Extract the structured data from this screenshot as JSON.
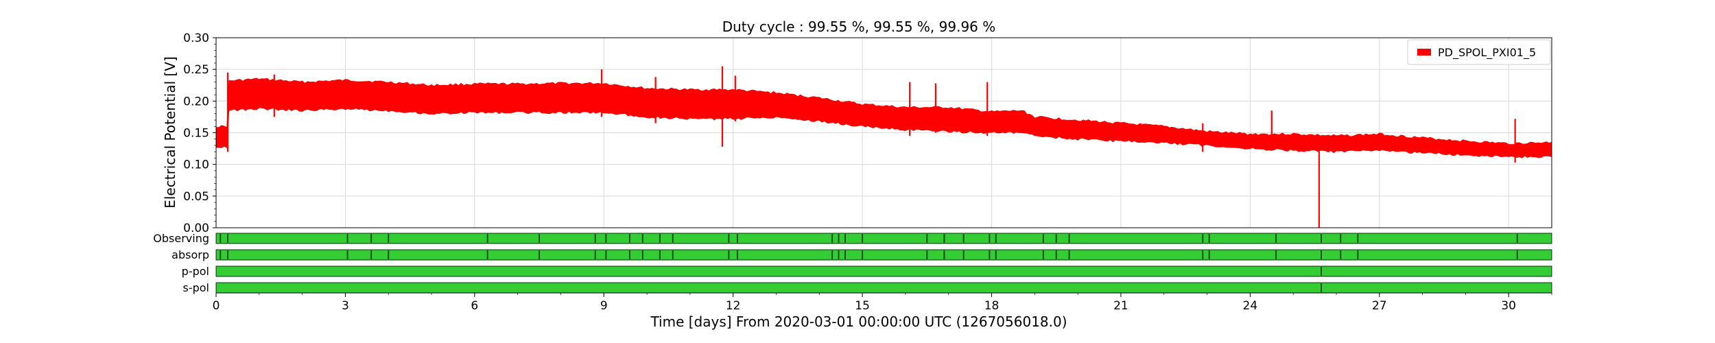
{
  "chart_data": {
    "type": "area",
    "title": "Duty cycle : 99.55 %, 99.55 %, 99.96 %",
    "xlabel": "Time [days] From 2020-03-01 00:00:00 UTC (1267056018.0)",
    "ylabel": "Electrical Potential [V]",
    "xlim": [
      0,
      31
    ],
    "ylim": [
      0,
      0.3
    ],
    "x_ticks": [
      "0",
      "3",
      "6",
      "9",
      "12",
      "15",
      "18",
      "21",
      "24",
      "27",
      "30"
    ],
    "y_ticks": [
      "0.00",
      "0.05",
      "0.10",
      "0.15",
      "0.20",
      "0.25",
      "0.30"
    ],
    "grid": true,
    "legend_position": "top-right",
    "series": [
      {
        "name": "PD_SPOL_PXI01_5",
        "color": "#ff0000",
        "x": [
          0,
          0.25,
          0.3,
          1,
          2,
          3,
          4,
          5,
          6,
          7,
          8,
          9,
          10,
          11,
          12,
          13,
          14,
          15,
          16,
          17,
          18,
          18.7,
          19,
          20,
          21,
          22,
          23,
          24,
          25,
          26,
          27,
          28,
          29,
          30,
          31
        ],
        "lower": [
          0.128,
          0.128,
          0.185,
          0.188,
          0.185,
          0.188,
          0.185,
          0.18,
          0.182,
          0.182,
          0.182,
          0.182,
          0.175,
          0.172,
          0.172,
          0.175,
          0.168,
          0.16,
          0.155,
          0.152,
          0.15,
          0.15,
          0.145,
          0.14,
          0.137,
          0.134,
          0.13,
          0.125,
          0.122,
          0.12,
          0.122,
          0.118,
          0.115,
          0.112,
          0.112
        ],
        "upper": [
          0.16,
          0.16,
          0.232,
          0.235,
          0.23,
          0.233,
          0.23,
          0.225,
          0.227,
          0.227,
          0.228,
          0.228,
          0.22,
          0.218,
          0.218,
          0.213,
          0.205,
          0.195,
          0.19,
          0.19,
          0.183,
          0.185,
          0.175,
          0.17,
          0.165,
          0.16,
          0.152,
          0.148,
          0.148,
          0.145,
          0.148,
          0.142,
          0.137,
          0.133,
          0.135
        ],
        "spikes": [
          {
            "x": 0.27,
            "low": 0.12,
            "high": 0.245
          },
          {
            "x": 1.35,
            "low": 0.175,
            "high": 0.242
          },
          {
            "x": 8.95,
            "low": 0.175,
            "high": 0.25
          },
          {
            "x": 10.2,
            "low": 0.165,
            "high": 0.238
          },
          {
            "x": 11.75,
            "low": 0.128,
            "high": 0.255
          },
          {
            "x": 12.05,
            "low": 0.168,
            "high": 0.24
          },
          {
            "x": 16.1,
            "low": 0.145,
            "high": 0.23
          },
          {
            "x": 16.7,
            "low": 0.15,
            "high": 0.228
          },
          {
            "x": 17.9,
            "low": 0.145,
            "high": 0.23
          },
          {
            "x": 22.9,
            "low": 0.12,
            "high": 0.165
          },
          {
            "x": 24.5,
            "low": 0.13,
            "high": 0.185
          },
          {
            "x": 25.6,
            "low": 0.0,
            "high": 0.135
          },
          {
            "x": 30.15,
            "low": 0.103,
            "high": 0.172
          }
        ]
      }
    ],
    "state_segments": {
      "labels": [
        "Observing",
        "absorp",
        "p-pol",
        "s-pol"
      ],
      "active_color": "#33cc33",
      "gap_color": "#1a4d1a",
      "gaps": [
        [
          0.1,
          0.27,
          3.05,
          3.6,
          4.0,
          6.3,
          7.5,
          8.8,
          9.05,
          9.6,
          9.9,
          10.3,
          10.6,
          11.9,
          12.1,
          14.3,
          14.45,
          14.6,
          15.0,
          16.5,
          16.9,
          17.35,
          17.95,
          18.1,
          19.2,
          19.5,
          19.8,
          22.9,
          23.05,
          24.6,
          25.65,
          26.1,
          26.5,
          30.2
        ],
        [
          0.1,
          0.27,
          3.05,
          3.6,
          4.0,
          6.3,
          7.5,
          8.8,
          9.05,
          9.6,
          9.9,
          10.3,
          10.6,
          11.9,
          12.1,
          14.3,
          14.45,
          14.6,
          15.0,
          16.5,
          16.9,
          17.35,
          17.95,
          18.1,
          19.2,
          19.5,
          19.8,
          22.9,
          23.05,
          24.6,
          25.65,
          26.1,
          26.5,
          30.2
        ],
        [
          25.65
        ],
        [
          25.65
        ]
      ]
    }
  }
}
